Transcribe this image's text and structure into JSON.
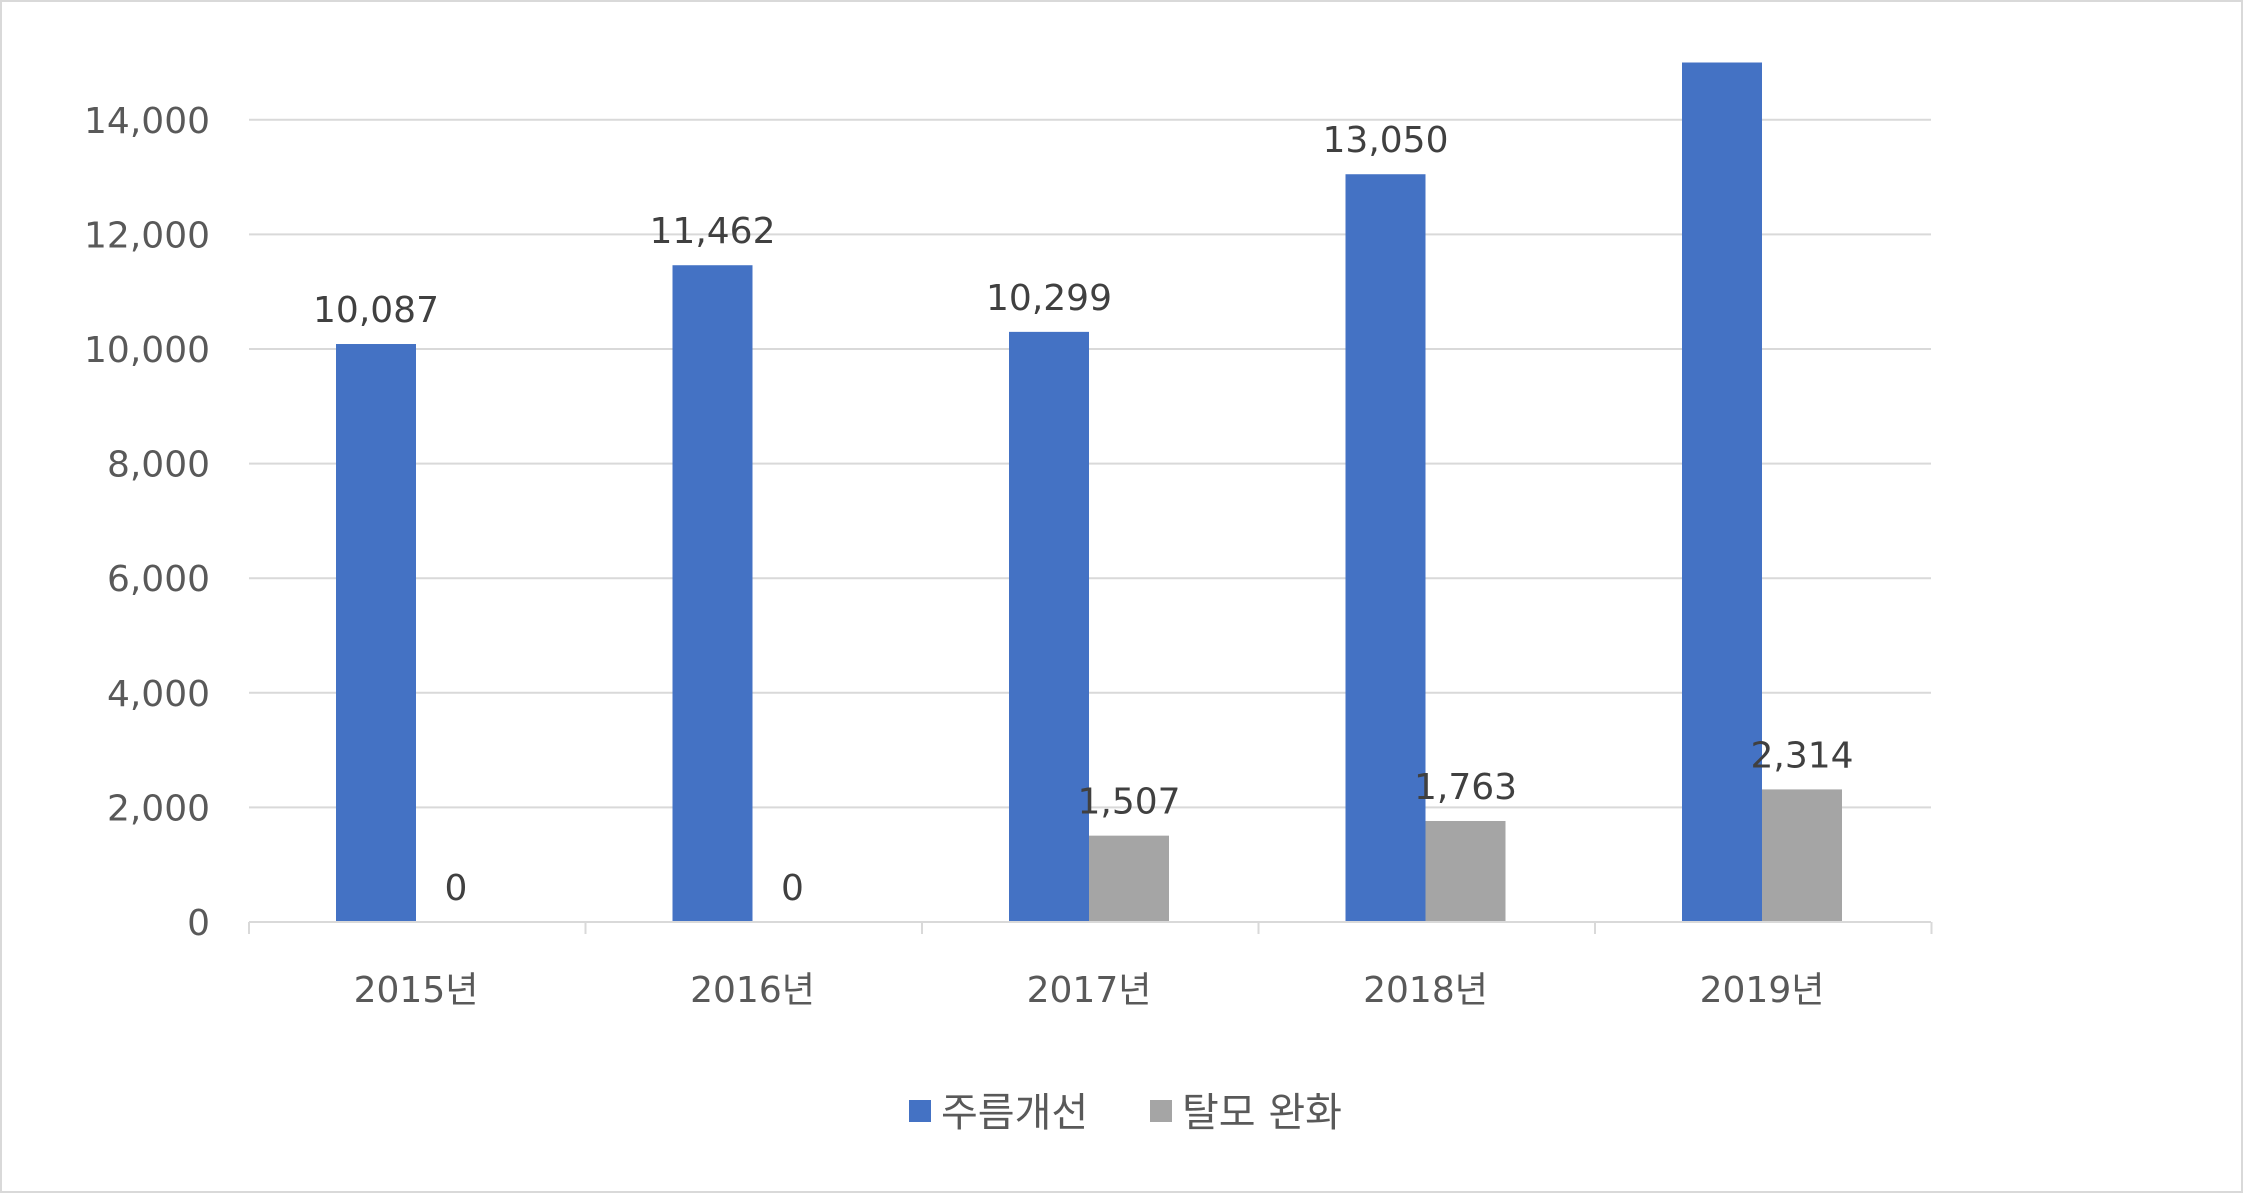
{
  "chart_data": {
    "type": "bar",
    "title": "",
    "xlabel": "",
    "ylabel": "",
    "categories": [
      "2015년",
      "2016년",
      "2017년",
      "2018년",
      "2019년"
    ],
    "series": [
      {
        "name": "주름개선",
        "color": "#4472c4",
        "values": [
          10087,
          11462,
          10299,
          13050,
          15000
        ],
        "labels": [
          "10,087",
          "11,462",
          "10,299",
          "13,050",
          null
        ]
      },
      {
        "name": "탈모 완화",
        "color": "#a5a5a5",
        "values": [
          0,
          0,
          1507,
          1763,
          2314
        ],
        "labels": [
          "0",
          "0",
          "1,507",
          "1,763",
          "2,314"
        ]
      }
    ],
    "ylim": [
      0,
      15000
    ],
    "yticks": [
      0,
      2000,
      4000,
      6000,
      8000,
      10000,
      12000,
      14000
    ],
    "ytick_labels": [
      "0",
      "2,000",
      "4,000",
      "6,000",
      "8,000",
      "10,000",
      "12,000",
      "14,000"
    ],
    "grid": true,
    "legend_position": "bottom"
  }
}
